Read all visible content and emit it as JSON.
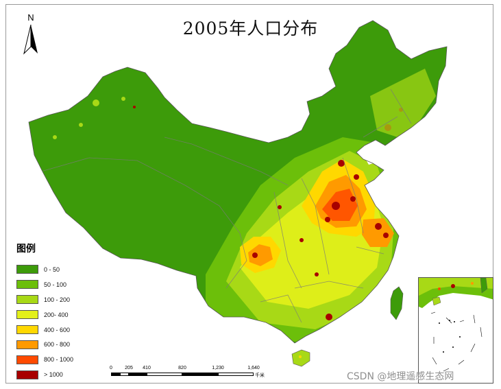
{
  "map": {
    "title": "2005年人口分布",
    "north_label": "N",
    "legend": {
      "title": "图例",
      "classes": [
        {
          "label": "0 - 50",
          "color": "#3d9b0a"
        },
        {
          "label": "50 - 100",
          "color": "#6cbf0a"
        },
        {
          "label": "100 - 200",
          "color": "#a8d916"
        },
        {
          "label": "200- 400",
          "color": "#e3f01a"
        },
        {
          "label": "400 - 600",
          "color": "#ffd800"
        },
        {
          "label": "600 - 800",
          "color": "#ff9a00"
        },
        {
          "label": "800 - 1000",
          "color": "#ff4a00"
        },
        {
          "label": "> 1000",
          "color": "#a80000"
        }
      ]
    },
    "scale_bar": {
      "ticks": [
        "0",
        "205",
        "410",
        "820",
        "1,230",
        "1,640"
      ],
      "unit": "千米"
    }
  },
  "watermark": "CSDN @地理遥感生态网"
}
